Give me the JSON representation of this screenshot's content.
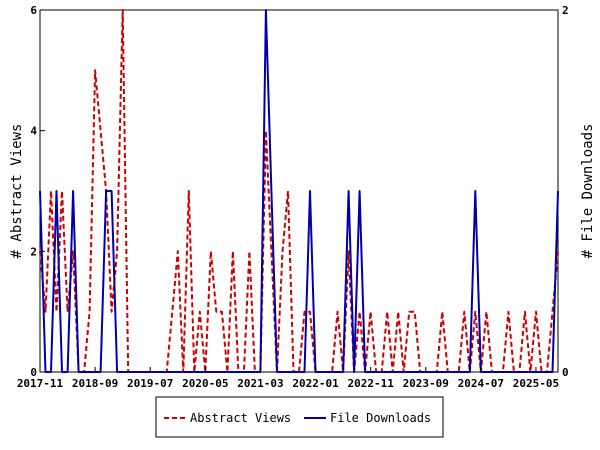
{
  "chart_data": {
    "type": "line",
    "title": "",
    "x_tick_labels": [
      "2017-11",
      "2018-09",
      "2019-07",
      "2020-05",
      "2021-03",
      "2022-01",
      "2022-11",
      "2023-09",
      "2024-07",
      "2025-05"
    ],
    "x_range": [
      "2017-11",
      "2025-09"
    ],
    "y_left": {
      "label": "# Abstract Views",
      "range": [
        0,
        6
      ],
      "ticks": [
        "0",
        "2",
        "4",
        "6"
      ]
    },
    "y_right": {
      "label": "# File Downloads",
      "range": [
        0,
        2
      ],
      "ticks": [
        "0",
        "2"
      ]
    },
    "grid": false,
    "legend_position": "bottom-center",
    "series": [
      {
        "name": "Abstract Views",
        "axis": "left",
        "color": "#cc0000",
        "style": "dashed",
        "points": [
          [
            "2017-11",
            2
          ],
          [
            "2017-12",
            1
          ],
          [
            "2018-01",
            3
          ],
          [
            "2018-02",
            1
          ],
          [
            "2018-03",
            3
          ],
          [
            "2018-04",
            1
          ],
          [
            "2018-05",
            2
          ],
          [
            "2018-06",
            0
          ],
          [
            "2018-07",
            0
          ],
          [
            "2018-08",
            1
          ],
          [
            "2018-09",
            5
          ],
          [
            "2018-10",
            4
          ],
          [
            "2018-11",
            3
          ],
          [
            "2018-12",
            1
          ],
          [
            "2019-01",
            2
          ],
          [
            "2019-02",
            6
          ],
          [
            "2019-03",
            0
          ],
          [
            "2019-04",
            0
          ],
          [
            "2019-05",
            0
          ],
          [
            "2019-06",
            0
          ],
          [
            "2019-07",
            0
          ],
          [
            "2019-08",
            0
          ],
          [
            "2019-09",
            0
          ],
          [
            "2019-10",
            0
          ],
          [
            "2019-11",
            1
          ],
          [
            "2019-12",
            2
          ],
          [
            "2020-01",
            0
          ],
          [
            "2020-02",
            3
          ],
          [
            "2020-03",
            0
          ],
          [
            "2020-04",
            1
          ],
          [
            "2020-05",
            0
          ],
          [
            "2020-06",
            2
          ],
          [
            "2020-07",
            1
          ],
          [
            "2020-08",
            1
          ],
          [
            "2020-09",
            0
          ],
          [
            "2020-10",
            2
          ],
          [
            "2020-11",
            0
          ],
          [
            "2020-12",
            0
          ],
          [
            "2021-01",
            2
          ],
          [
            "2021-02",
            0
          ],
          [
            "2021-03",
            0
          ],
          [
            "2021-04",
            4
          ],
          [
            "2021-05",
            2
          ],
          [
            "2021-06",
            0
          ],
          [
            "2021-07",
            2
          ],
          [
            "2021-08",
            3
          ],
          [
            "2021-09",
            0
          ],
          [
            "2021-10",
            0
          ],
          [
            "2021-11",
            1
          ],
          [
            "2021-12",
            1
          ],
          [
            "2022-01",
            0
          ],
          [
            "2022-02",
            0
          ],
          [
            "2022-03",
            0
          ],
          [
            "2022-04",
            0
          ],
          [
            "2022-05",
            1
          ],
          [
            "2022-06",
            0
          ],
          [
            "2022-07",
            2
          ],
          [
            "2022-08",
            0
          ],
          [
            "2022-09",
            1
          ],
          [
            "2022-10",
            0
          ],
          [
            "2022-11",
            1
          ],
          [
            "2022-12",
            0
          ],
          [
            "2023-01",
            0
          ],
          [
            "2023-02",
            1
          ],
          [
            "2023-03",
            0
          ],
          [
            "2023-04",
            1
          ],
          [
            "2023-05",
            0
          ],
          [
            "2023-06",
            1
          ],
          [
            "2023-07",
            1
          ],
          [
            "2023-08",
            0
          ],
          [
            "2023-09",
            0
          ],
          [
            "2023-10",
            0
          ],
          [
            "2023-11",
            0
          ],
          [
            "2023-12",
            1
          ],
          [
            "2024-01",
            0
          ],
          [
            "2024-02",
            0
          ],
          [
            "2024-03",
            0
          ],
          [
            "2024-04",
            1
          ],
          [
            "2024-05",
            0
          ],
          [
            "2024-06",
            1
          ],
          [
            "2024-07",
            0
          ],
          [
            "2024-08",
            1
          ],
          [
            "2024-09",
            0
          ],
          [
            "2024-10",
            0
          ],
          [
            "2024-11",
            0
          ],
          [
            "2024-12",
            1
          ],
          [
            "2025-01",
            0
          ],
          [
            "2025-02",
            0
          ],
          [
            "2025-03",
            1
          ],
          [
            "2025-04",
            0
          ],
          [
            "2025-05",
            1
          ],
          [
            "2025-06",
            0
          ],
          [
            "2025-07",
            0
          ],
          [
            "2025-08",
            1
          ],
          [
            "2025-09",
            2
          ]
        ]
      },
      {
        "name": "File Downloads",
        "axis": "right",
        "color": "#0000aa",
        "style": "solid",
        "points": [
          [
            "2017-11",
            1
          ],
          [
            "2017-12",
            0
          ],
          [
            "2018-01",
            0
          ],
          [
            "2018-02",
            1
          ],
          [
            "2018-03",
            0
          ],
          [
            "2018-04",
            0
          ],
          [
            "2018-05",
            1
          ],
          [
            "2018-06",
            0
          ],
          [
            "2018-07",
            0
          ],
          [
            "2018-08",
            0
          ],
          [
            "2018-09",
            0
          ],
          [
            "2018-10",
            0
          ],
          [
            "2018-11",
            1
          ],
          [
            "2018-12",
            1
          ],
          [
            "2019-01",
            0
          ],
          [
            "2019-02",
            0
          ],
          [
            "2019-03",
            0
          ],
          [
            "2019-04",
            0
          ],
          [
            "2019-05",
            0
          ],
          [
            "2019-06",
            0
          ],
          [
            "2019-07",
            0
          ],
          [
            "2019-08",
            0
          ],
          [
            "2019-09",
            0
          ],
          [
            "2019-10",
            0
          ],
          [
            "2019-11",
            0
          ],
          [
            "2019-12",
            0
          ],
          [
            "2020-01",
            0
          ],
          [
            "2020-02",
            0
          ],
          [
            "2020-03",
            0
          ],
          [
            "2020-04",
            0
          ],
          [
            "2020-05",
            0
          ],
          [
            "2020-06",
            0
          ],
          [
            "2020-07",
            0
          ],
          [
            "2020-08",
            0
          ],
          [
            "2020-09",
            0
          ],
          [
            "2020-10",
            0
          ],
          [
            "2020-11",
            0
          ],
          [
            "2020-12",
            0
          ],
          [
            "2021-01",
            0
          ],
          [
            "2021-02",
            0
          ],
          [
            "2021-03",
            0
          ],
          [
            "2021-04",
            2
          ],
          [
            "2021-05",
            1
          ],
          [
            "2021-06",
            0
          ],
          [
            "2021-07",
            0
          ],
          [
            "2021-08",
            0
          ],
          [
            "2021-09",
            0
          ],
          [
            "2021-10",
            0
          ],
          [
            "2021-11",
            0
          ],
          [
            "2021-12",
            1
          ],
          [
            "2022-01",
            0
          ],
          [
            "2022-02",
            0
          ],
          [
            "2022-03",
            0
          ],
          [
            "2022-04",
            0
          ],
          [
            "2022-05",
            0
          ],
          [
            "2022-06",
            0
          ],
          [
            "2022-07",
            1
          ],
          [
            "2022-08",
            0
          ],
          [
            "2022-09",
            1
          ],
          [
            "2022-10",
            0
          ],
          [
            "2022-11",
            0
          ],
          [
            "2022-12",
            0
          ],
          [
            "2023-01",
            0
          ],
          [
            "2023-02",
            0
          ],
          [
            "2023-03",
            0
          ],
          [
            "2023-04",
            0
          ],
          [
            "2023-05",
            0
          ],
          [
            "2023-06",
            0
          ],
          [
            "2023-07",
            0
          ],
          [
            "2023-08",
            0
          ],
          [
            "2023-09",
            0
          ],
          [
            "2023-10",
            0
          ],
          [
            "2023-11",
            0
          ],
          [
            "2023-12",
            0
          ],
          [
            "2024-01",
            0
          ],
          [
            "2024-02",
            0
          ],
          [
            "2024-03",
            0
          ],
          [
            "2024-04",
            0
          ],
          [
            "2024-05",
            0
          ],
          [
            "2024-06",
            1
          ],
          [
            "2024-07",
            0
          ],
          [
            "2024-08",
            0
          ],
          [
            "2024-09",
            0
          ],
          [
            "2024-10",
            0
          ],
          [
            "2024-11",
            0
          ],
          [
            "2024-12",
            0
          ],
          [
            "2025-01",
            0
          ],
          [
            "2025-02",
            0
          ],
          [
            "2025-03",
            0
          ],
          [
            "2025-04",
            0
          ],
          [
            "2025-05",
            0
          ],
          [
            "2025-06",
            0
          ],
          [
            "2025-07",
            0
          ],
          [
            "2025-08",
            0
          ],
          [
            "2025-09",
            1
          ]
        ]
      }
    ]
  }
}
